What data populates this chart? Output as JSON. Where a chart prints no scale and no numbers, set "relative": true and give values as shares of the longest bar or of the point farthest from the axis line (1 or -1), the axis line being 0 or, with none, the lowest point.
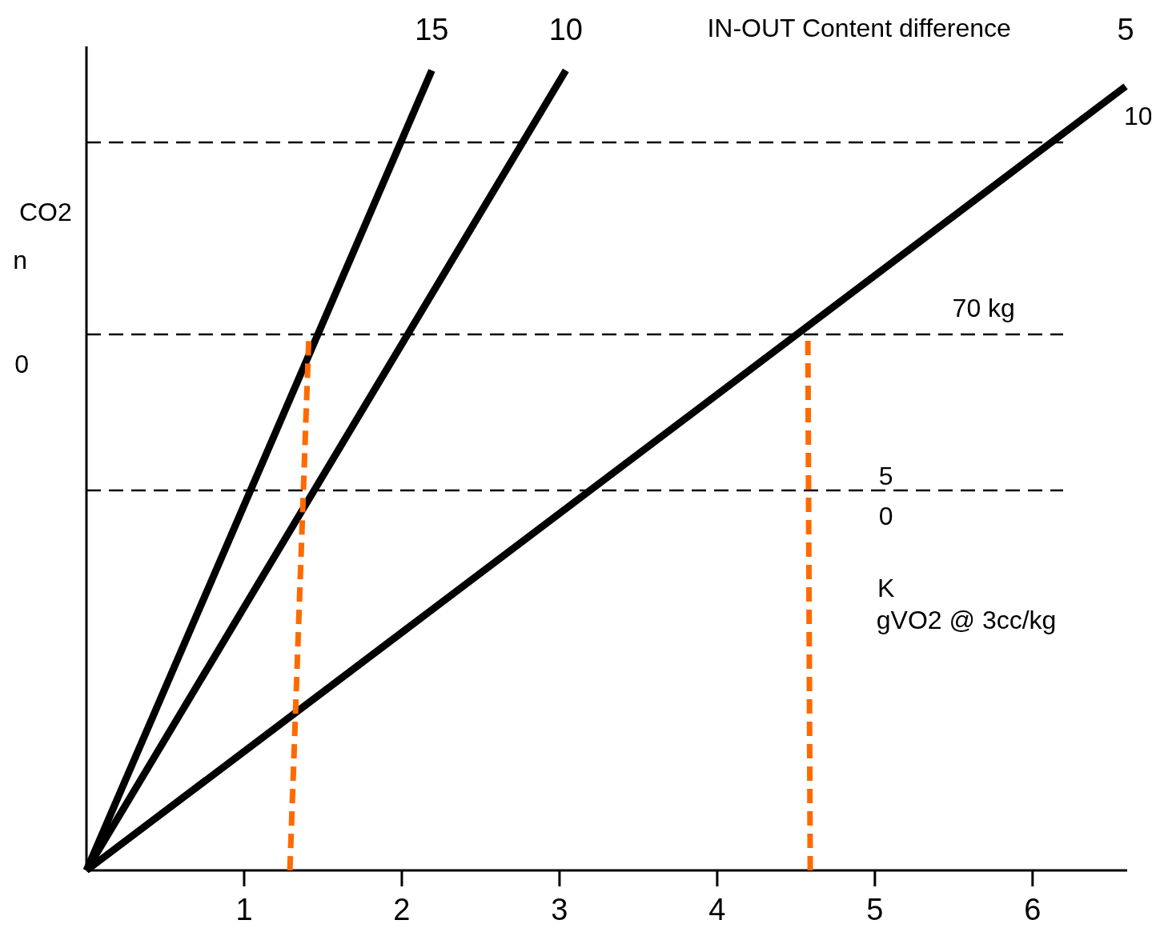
{
  "chart_data": {
    "type": "line",
    "relative": true,
    "xlim": [
      0,
      6.6
    ],
    "xticks": [
      1,
      2,
      3,
      4,
      5,
      6
    ],
    "tick_labels": "x",
    "grid": false,
    "legend": false,
    "series": [
      {
        "name": "15",
        "color": "#000000",
        "x": [
          0,
          2.19
        ],
        "values": [
          0,
          1.0
        ]
      },
      {
        "name": "10",
        "color": "#000000",
        "x": [
          0,
          3.04
        ],
        "values": [
          0,
          1.0
        ]
      },
      {
        "name": "5",
        "color": "#000000",
        "x": [
          0,
          6.59
        ],
        "values": [
          0,
          0.98
        ]
      },
      {
        "color": "#ff6a00",
        "line_style": "dashed",
        "x": [
          1.29,
          1.41
        ],
        "values": [
          0,
          0.665
        ]
      },
      {
        "color": "#ff6a00",
        "line_style": "dashed",
        "x": [
          4.59,
          4.575
        ],
        "values": [
          0,
          0.665
        ]
      }
    ],
    "ref_lines": [
      {
        "axis": "y",
        "value": 0.91,
        "color": "#000000",
        "line_style": "dashed"
      },
      {
        "axis": "y",
        "value": 0.67,
        "color": "#000000",
        "line_style": "dashed"
      },
      {
        "axis": "y",
        "value": 0.475,
        "color": "#000000",
        "line_style": "dashed"
      }
    ],
    "annotations": [
      "IN-OUT Content difference",
      "10",
      "70 kg",
      "5",
      "0",
      "K",
      "gVO2 @ 3cc/kg",
      "CO2",
      "n",
      "0"
    ]
  }
}
